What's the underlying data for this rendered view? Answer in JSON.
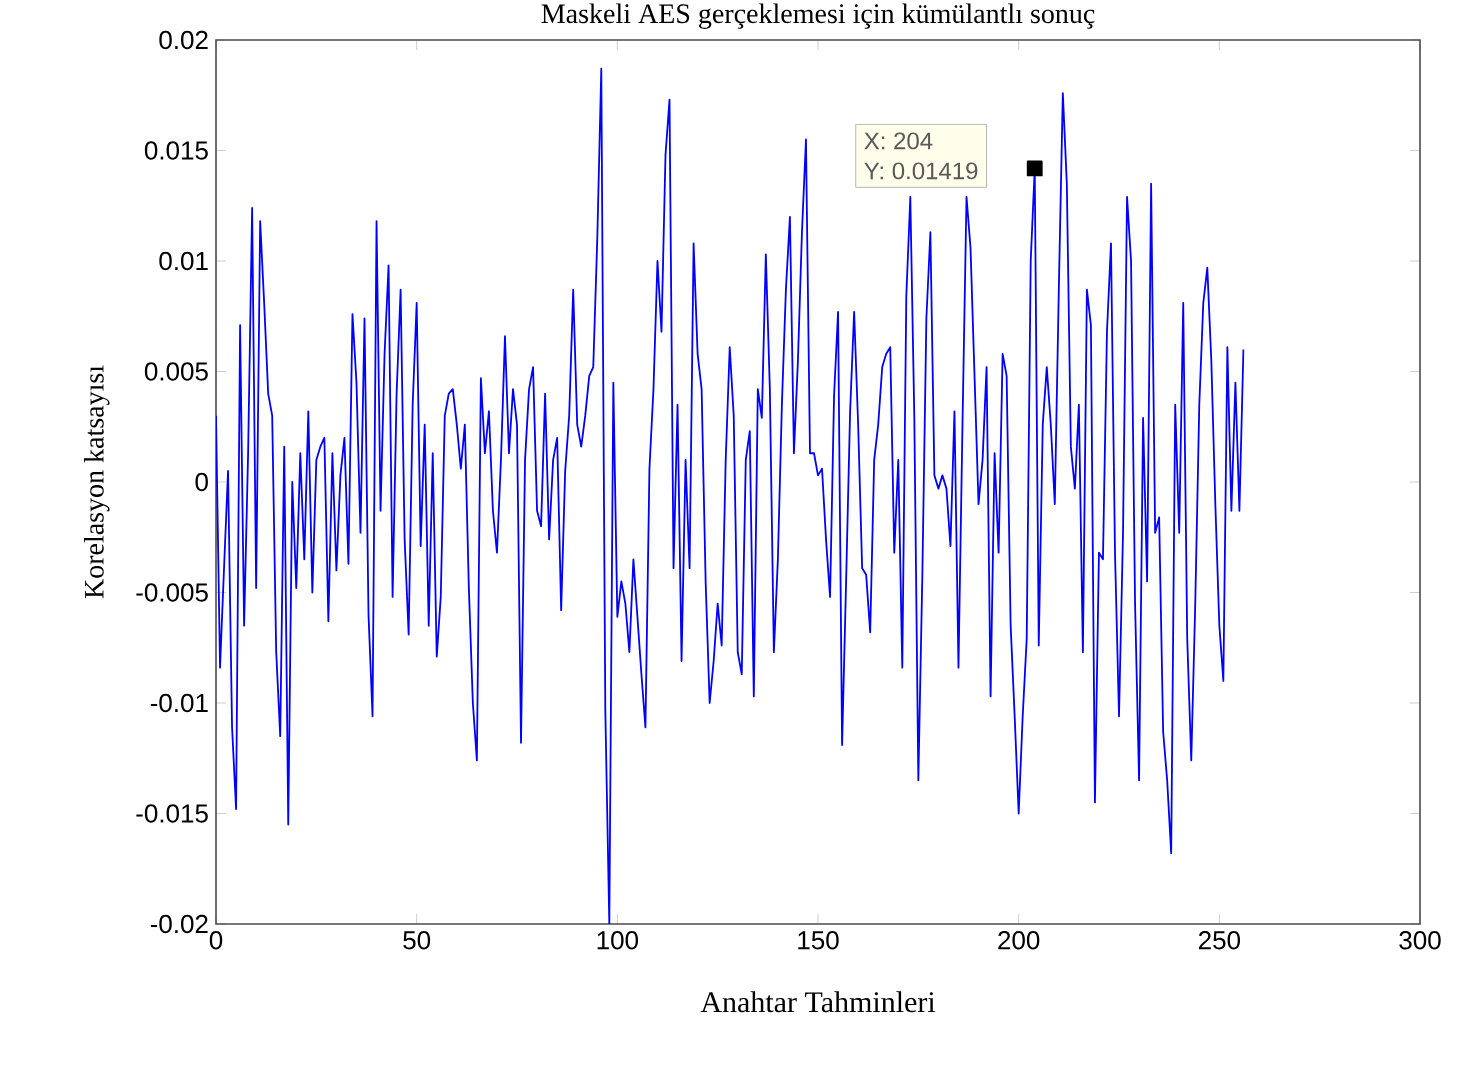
{
  "chart_data": {
    "type": "line",
    "title": "Maskeli AES gerçeklemesi için kümülantlı sonuç",
    "xlabel": "Anahtar Tahminleri",
    "ylabel": "Korelasyon katsayısı",
    "xlim": [
      0,
      300
    ],
    "xticks": [
      0,
      50,
      100,
      150,
      200,
      250,
      300
    ],
    "ylim": [
      -0.02,
      0.02
    ],
    "yticks": [
      -0.02,
      -0.015,
      -0.01,
      -0.005,
      0,
      0.005,
      0.01,
      0.015,
      0.02
    ],
    "annotations": [
      "X: 204",
      "Y: 0.01419"
    ],
    "series": [
      {
        "color": "#0000ff",
        "x": [
          0,
          1,
          2,
          3,
          4,
          5,
          6,
          7,
          8,
          9,
          10,
          11,
          12,
          13,
          14,
          15,
          16,
          17,
          18,
          19,
          20,
          21,
          22,
          23,
          24,
          25,
          26,
          27,
          28,
          29,
          30,
          31,
          32,
          33,
          34,
          35,
          36,
          37,
          38,
          39,
          40,
          41,
          42,
          43,
          44,
          45,
          46,
          47,
          48,
          49,
          50,
          51,
          52,
          53,
          54,
          55,
          56,
          57,
          58,
          59,
          60,
          61,
          62,
          63,
          64,
          65,
          66,
          67,
          68,
          69,
          70,
          71,
          72,
          73,
          74,
          75,
          76,
          77,
          78,
          79,
          80,
          81,
          82,
          83,
          84,
          85,
          86,
          87,
          88,
          89,
          90,
          91,
          92,
          93,
          94,
          95,
          96,
          97,
          98,
          99,
          100,
          101,
          102,
          103,
          104,
          105,
          106,
          107,
          108,
          109,
          110,
          111,
          112,
          113,
          114,
          115,
          116,
          117,
          118,
          119,
          120,
          121,
          122,
          123,
          124,
          125,
          126,
          127,
          128,
          129,
          130,
          131,
          132,
          133,
          134,
          135,
          136,
          137,
          138,
          139,
          140,
          141,
          142,
          143,
          144,
          145,
          146,
          147,
          148,
          149,
          150,
          151,
          152,
          153,
          154,
          155,
          156,
          157,
          158,
          159,
          160,
          161,
          162,
          163,
          164,
          165,
          166,
          167,
          168,
          169,
          170,
          171,
          172,
          173,
          174,
          175,
          176,
          177,
          178,
          179,
          180,
          181,
          182,
          183,
          184,
          185,
          186,
          187,
          188,
          189,
          190,
          191,
          192,
          193,
          194,
          195,
          196,
          197,
          198,
          199,
          200,
          201,
          202,
          203,
          204,
          205,
          206,
          207,
          208,
          209,
          210,
          211,
          212,
          213,
          214,
          215,
          216,
          217,
          218,
          219,
          220,
          221,
          222,
          223,
          224,
          225,
          226,
          227,
          228,
          229,
          230,
          231,
          232,
          233,
          234,
          235,
          236,
          237,
          238,
          239,
          240,
          241,
          242,
          243,
          244,
          245,
          246,
          247,
          248,
          249,
          250,
          251,
          252,
          253,
          254,
          255,
          256
        ],
        "values": [
          0.003,
          -0.0084,
          -0.0039,
          0.0005,
          -0.0111,
          -0.0148,
          0.0071,
          -0.0065,
          0.0013,
          0.0124,
          -0.0048,
          0.0118,
          0.0081,
          0.004,
          0.003,
          -0.0077,
          -0.0115,
          0.0016,
          -0.0155,
          0,
          -0.0048,
          0.0013,
          -0.0035,
          0.0032,
          -0.005,
          0.001,
          0.0016,
          0.002,
          -0.0063,
          0.0013,
          -0.004,
          0.0003,
          0.002,
          -0.0037,
          0.0076,
          0.0045,
          -0.0023,
          0.0074,
          -0.006,
          -0.0106,
          0.0118,
          -0.0013,
          0.0058,
          0.0098,
          -0.0052,
          0.004,
          0.0087,
          -0.0026,
          -0.0069,
          0.0035,
          0.0081,
          -0.0029,
          0.0026,
          -0.0065,
          0.0013,
          -0.0079,
          -0.0052,
          0.003,
          0.004,
          0.0042,
          0.0026,
          0.0006,
          0.0026,
          -0.0048,
          -0.01,
          -0.0126,
          0.0047,
          0.0013,
          0.0032,
          -0.0013,
          -0.0032,
          0.001,
          0.0066,
          0.0013,
          0.0042,
          0.0026,
          -0.0118,
          0.001,
          0.0042,
          0.0052,
          -0.0013,
          -0.002,
          0.004,
          -0.0026,
          0.001,
          0.002,
          -0.0058,
          0.0005,
          0.003,
          0.0087,
          0.0026,
          0.0016,
          0.003,
          0.0048,
          0.0052,
          0.011,
          0.0187,
          -0.0103,
          -0.02,
          0.0045,
          -0.0061,
          -0.0045,
          -0.0055,
          -0.0077,
          -0.0035,
          -0.0061,
          -0.0087,
          -0.0111,
          0.0006,
          0.0042,
          0.01,
          0.0068,
          0.0148,
          0.0173,
          -0.0039,
          0.0035,
          -0.0081,
          0.001,
          -0.0039,
          0.0108,
          0.0058,
          0.0042,
          -0.0045,
          -0.01,
          -0.0081,
          -0.0055,
          -0.0074,
          0.001,
          0.0061,
          0.003,
          -0.0077,
          -0.0087,
          0.001,
          0.0023,
          -0.0097,
          0.0042,
          0.0029,
          0.0103,
          0.0042,
          -0.0077,
          -0.0035,
          0.0035,
          0.0087,
          0.012,
          0.0013,
          0.0055,
          0.0113,
          0.0155,
          0.0013,
          0.0013,
          0.0003,
          0.0006,
          -0.0026,
          -0.0052,
          0.0039,
          0.0077,
          -0.0119,
          -0.0045,
          0.0032,
          0.0077,
          0.0026,
          -0.0039,
          -0.0042,
          -0.0068,
          0.001,
          0.0026,
          0.0052,
          0.0058,
          0.0061,
          -0.0032,
          0.001,
          -0.0084,
          0.0084,
          0.0129,
          0.0029,
          -0.0135,
          -0.0042,
          0.0074,
          0.0113,
          0.0003,
          -0.0003,
          0.0003,
          -0.0003,
          -0.0029,
          0.0032,
          -0.0084,
          0.0026,
          0.0129,
          0.0106,
          0.0048,
          -0.001,
          0.001,
          0.0052,
          -0.0097,
          0.0013,
          -0.0032,
          0.0058,
          0.0048,
          -0.0065,
          -0.0106,
          -0.015,
          -0.0106,
          -0.0071,
          0.01,
          0.0142,
          -0.0074,
          0.0026,
          0.0052,
          0.0026,
          -0.001,
          0.0087,
          0.0176,
          0.0135,
          0.0016,
          -0.0003,
          0.0035,
          -0.0077,
          0.0087,
          0.0071,
          -0.0145,
          -0.0032,
          -0.0035,
          0.0068,
          0.0108,
          -0.0032,
          -0.0106,
          -0.0023,
          0.0129,
          0.01,
          -0.0055,
          -0.0135,
          0.0029,
          -0.0045,
          0.0135,
          -0.0023,
          -0.0016,
          -0.0113,
          -0.0135,
          -0.0168,
          0.0035,
          -0.0023,
          0.0081,
          -0.0071,
          -0.0126,
          -0.0055,
          0.0035,
          0.0081,
          0.0097,
          0.0055,
          -0.001,
          -0.0065,
          -0.009,
          0.0061,
          -0.0013,
          0.0045,
          -0.0013,
          0.006
        ]
      },
      {
        "type": "scatter",
        "color": "#000000",
        "marker": "square",
        "x": [
          204
        ],
        "values": [
          0.01419
        ]
      }
    ]
  }
}
